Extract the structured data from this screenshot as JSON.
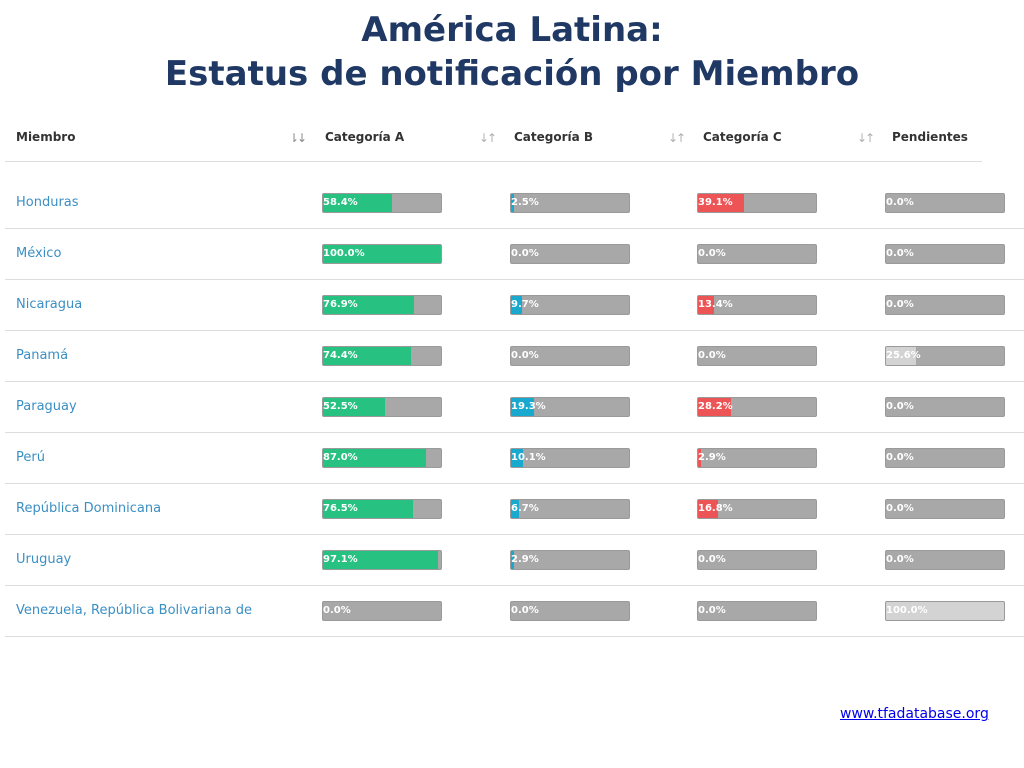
{
  "title": {
    "line1": "América Latina:",
    "line2": "Estatus de notificación por Miembro"
  },
  "columns": [
    {
      "label": "Miembro",
      "icon": "sort-desc-icon"
    },
    {
      "label": "Categoría A",
      "icon": "sort-icon"
    },
    {
      "label": "Categoría B",
      "icon": "sort-icon"
    },
    {
      "label": "Categoría C",
      "icon": "sort-icon"
    },
    {
      "label": "Pendientes",
      "icon": ""
    }
  ],
  "colors": {
    "cat_a": "#27c281",
    "cat_b": "#19a9cf",
    "cat_c": "#ec5456",
    "pending": "#d3d3d3",
    "track": "#a8a8a8"
  },
  "rows": [
    {
      "member": "Honduras",
      "a": "58.4%",
      "b": "2.5%",
      "c": "39.1%",
      "p": "0.0%"
    },
    {
      "member": "México",
      "a": "100.0%",
      "b": "0.0%",
      "c": "0.0%",
      "p": "0.0%"
    },
    {
      "member": "Nicaragua",
      "a": "76.9%",
      "b": "9.7%",
      "c": "13.4%",
      "p": "0.0%"
    },
    {
      "member": "Panamá",
      "a": "74.4%",
      "b": "0.0%",
      "c": "0.0%",
      "p": "25.6%"
    },
    {
      "member": "Paraguay",
      "a": "52.5%",
      "b": "19.3%",
      "c": "28.2%",
      "p": "0.0%"
    },
    {
      "member": "Perú",
      "a": "87.0%",
      "b": "10.1%",
      "c": "2.9%",
      "p": "0.0%"
    },
    {
      "member": "República Dominicana",
      "a": "76.5%",
      "b": "6.7%",
      "c": "16.8%",
      "p": "0.0%"
    },
    {
      "member": "Uruguay",
      "a": "97.1%",
      "b": "2.9%",
      "c": "0.0%",
      "p": "0.0%"
    },
    {
      "member": "Venezuela, República Bolivariana de",
      "a": "0.0%",
      "b": "0.0%",
      "c": "0.0%",
      "p": "100.0%"
    }
  ],
  "footer": {
    "link": "www.tfadatabase.org"
  }
}
